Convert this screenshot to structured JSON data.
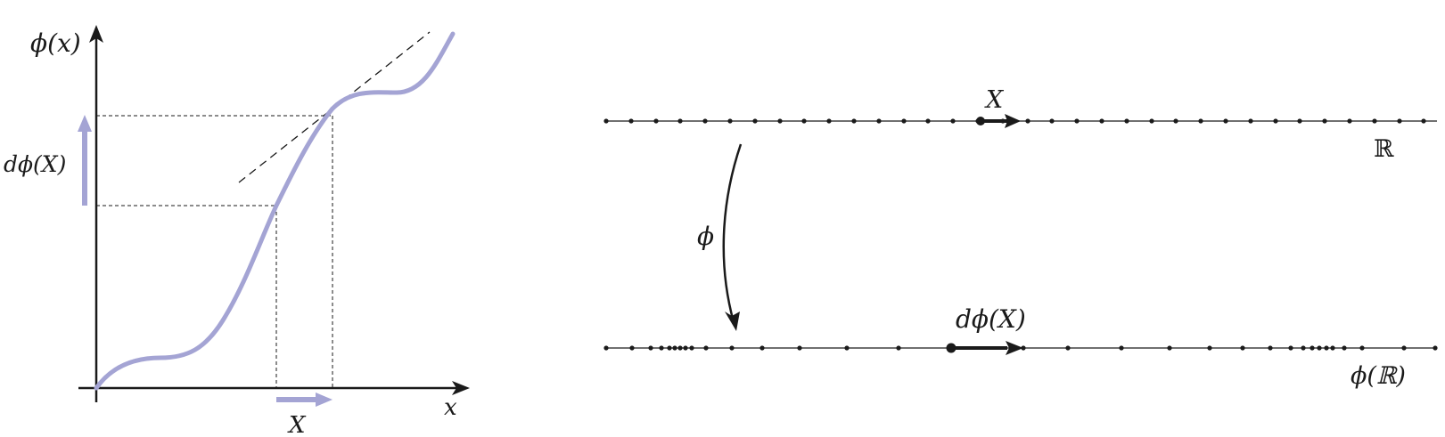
{
  "left_panel": {
    "y_axis_label": "ϕ(x)",
    "x_axis_label": "x",
    "dphi_label": "dϕ(X)",
    "x_vector_label": "X",
    "curve_color": "#a4a4d4",
    "axis_color": "#1a1a1a"
  },
  "right_panel": {
    "top_line_label": "ℝ",
    "top_vector_label": "X",
    "map_label": "ϕ",
    "bottom_vector_label": "dϕ(X)",
    "bottom_line_label": "ϕ(ℝ)"
  }
}
